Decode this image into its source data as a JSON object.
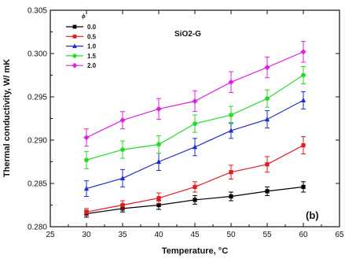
{
  "chart_data": {
    "type": "line",
    "annotation_title": "SiO2-G",
    "panel_label": "(b)",
    "legend_title": "ϕ",
    "xlabel": "Temperature, °C",
    "ylabel": "Thermal conductivity, W/ mK",
    "xlim": [
      25,
      65
    ],
    "ylim": [
      0.28,
      0.305
    ],
    "xticks": [
      25,
      30,
      35,
      40,
      45,
      50,
      55,
      60,
      65
    ],
    "yticks": [
      "0.280",
      "0.285",
      "0.290",
      "0.295",
      "0.300",
      "0.305"
    ],
    "x": [
      30,
      35,
      40,
      45,
      50,
      55,
      60
    ],
    "legend_placement": "top-left",
    "grid": false,
    "series": [
      {
        "name": "0.0",
        "color": "#000000",
        "marker": "square",
        "values": [
          0.2815,
          0.2821,
          0.2825,
          0.2831,
          0.2835,
          0.2841,
          0.2846
        ],
        "errors": [
          0.0004,
          0.0004,
          0.0005,
          0.0005,
          0.0005,
          0.0005,
          0.0006
        ]
      },
      {
        "name": "0.5",
        "color": "#e41a1c",
        "marker": "square",
        "values": [
          0.2817,
          0.2825,
          0.2833,
          0.2846,
          0.2863,
          0.2872,
          0.2894
        ],
        "errors": [
          0.0004,
          0.0005,
          0.0006,
          0.0006,
          0.0008,
          0.0009,
          0.001
        ]
      },
      {
        "name": "1.0",
        "color": "#1f2ccf",
        "marker": "triangle",
        "values": [
          0.2844,
          0.2856,
          0.2875,
          0.2892,
          0.2911,
          0.2924,
          0.2946
        ],
        "errors": [
          0.0009,
          0.001,
          0.001,
          0.001,
          0.0009,
          0.001,
          0.001
        ]
      },
      {
        "name": "1.5",
        "color": "#22dd22",
        "marker": "circle",
        "values": [
          0.2877,
          0.2889,
          0.2895,
          0.2919,
          0.2929,
          0.2948,
          0.2975
        ],
        "errors": [
          0.001,
          0.001,
          0.001,
          0.001,
          0.001,
          0.001,
          0.001
        ]
      },
      {
        "name": "2.0",
        "color": "#e020e0",
        "marker": "diamond",
        "values": [
          0.2903,
          0.2923,
          0.2936,
          0.2945,
          0.2967,
          0.2984,
          0.3002
        ],
        "errors": [
          0.001,
          0.001,
          0.0012,
          0.0012,
          0.0012,
          0.0012,
          0.0012
        ]
      }
    ]
  }
}
